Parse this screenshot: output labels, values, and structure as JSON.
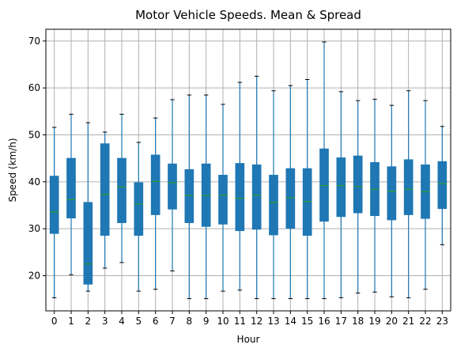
{
  "chart_data": {
    "type": "box",
    "title": "Motor Vehicle Speeds. Mean & Spread",
    "xlabel": "Hour",
    "ylabel": "Speed (km/h)",
    "ylim": [
      12.5,
      72.5
    ],
    "yticks": [
      20,
      30,
      40,
      50,
      60,
      70
    ],
    "grid": true,
    "colors": {
      "box": "#1f77b4",
      "whisker": "#1f77b4",
      "median": "#2ca02c",
      "grid": "#b0b0b0",
      "axis": "#000000"
    },
    "categories": [
      "0",
      "1",
      "2",
      "3",
      "4",
      "5",
      "6",
      "7",
      "8",
      "9",
      "10",
      "11",
      "12",
      "13",
      "14",
      "15",
      "16",
      "17",
      "18",
      "19",
      "20",
      "21",
      "22",
      "23"
    ],
    "boxes": [
      {
        "whisker_low": 15.3,
        "q1": 29.0,
        "median": 33.6,
        "q3": 41.2,
        "whisker_high": 51.6
      },
      {
        "whisker_low": 20.2,
        "q1": 32.3,
        "median": 36.2,
        "q3": 45.0,
        "whisker_high": 54.4
      },
      {
        "whisker_low": 16.7,
        "q1": 18.2,
        "median": 22.5,
        "q3": 35.6,
        "whisker_high": 52.6
      },
      {
        "whisker_low": 21.6,
        "q1": 28.6,
        "median": 37.3,
        "q3": 48.1,
        "whisker_high": 50.6
      },
      {
        "whisker_low": 22.8,
        "q1": 31.3,
        "median": 38.9,
        "q3": 45.0,
        "whisker_high": 54.4
      },
      {
        "whisker_low": 16.7,
        "q1": 28.6,
        "median": 35.3,
        "q3": 39.8,
        "whisker_high": 48.4
      },
      {
        "whisker_low": 17.1,
        "q1": 33.0,
        "median": 40.1,
        "q3": 45.7,
        "whisker_high": 53.6
      },
      {
        "whisker_low": 21.0,
        "q1": 34.2,
        "median": 39.8,
        "q3": 43.8,
        "whisker_high": 57.5
      },
      {
        "whisker_low": 15.1,
        "q1": 31.3,
        "median": 37.1,
        "q3": 42.6,
        "whisker_high": 58.5
      },
      {
        "whisker_low": 15.1,
        "q1": 30.5,
        "median": 37.1,
        "q3": 43.8,
        "whisker_high": 58.5
      },
      {
        "whisker_low": 16.7,
        "q1": 31.0,
        "median": 37.1,
        "q3": 41.4,
        "whisker_high": 56.5
      },
      {
        "whisker_low": 16.9,
        "q1": 29.6,
        "median": 36.5,
        "q3": 43.9,
        "whisker_high": 61.2
      },
      {
        "whisker_low": 15.1,
        "q1": 29.9,
        "median": 37.1,
        "q3": 43.6,
        "whisker_high": 62.5
      },
      {
        "whisker_low": 15.1,
        "q1": 28.7,
        "median": 35.6,
        "q3": 41.4,
        "whisker_high": 59.4
      },
      {
        "whisker_low": 15.1,
        "q1": 30.1,
        "median": 36.6,
        "q3": 42.8,
        "whisker_high": 60.5
      },
      {
        "whisker_low": 15.1,
        "q1": 28.6,
        "median": 35.8,
        "q3": 42.8,
        "whisker_high": 61.8
      },
      {
        "whisker_low": 15.1,
        "q1": 31.6,
        "median": 39.2,
        "q3": 47.0,
        "whisker_high": 69.8
      },
      {
        "whisker_low": 15.3,
        "q1": 32.6,
        "median": 39.2,
        "q3": 45.1,
        "whisker_high": 59.2
      },
      {
        "whisker_low": 16.3,
        "q1": 33.4,
        "median": 39.0,
        "q3": 45.5,
        "whisker_high": 57.3
      },
      {
        "whisker_low": 16.5,
        "q1": 32.8,
        "median": 38.4,
        "q3": 44.1,
        "whisker_high": 57.6
      },
      {
        "whisker_low": 15.5,
        "q1": 31.9,
        "median": 38.0,
        "q3": 43.2,
        "whisker_high": 56.3
      },
      {
        "whisker_low": 15.3,
        "q1": 33.0,
        "median": 38.4,
        "q3": 44.7,
        "whisker_high": 59.4
      },
      {
        "whisker_low": 17.1,
        "q1": 32.2,
        "median": 37.9,
        "q3": 43.6,
        "whisker_high": 57.3
      },
      {
        "whisker_low": 26.6,
        "q1": 34.3,
        "median": 39.6,
        "q3": 44.3,
        "whisker_high": 51.8
      }
    ]
  }
}
